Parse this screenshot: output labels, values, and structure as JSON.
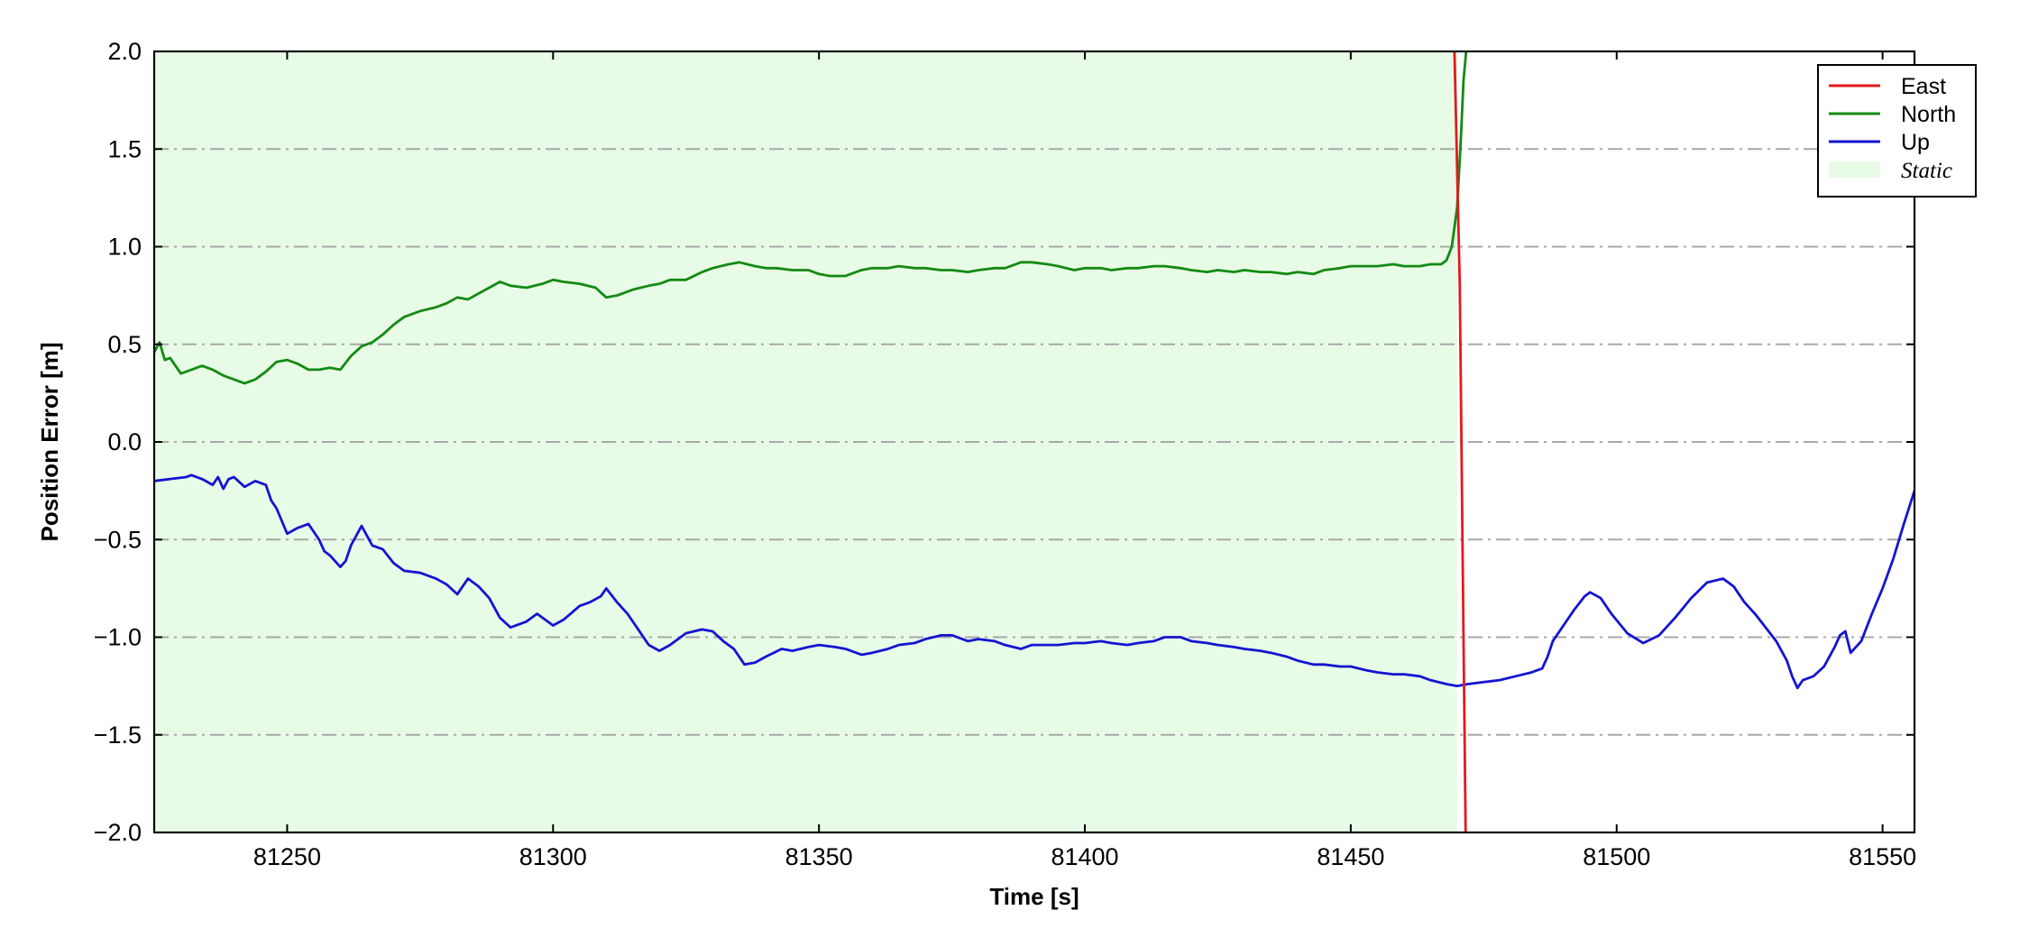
{
  "chart_data": {
    "type": "line",
    "xlabel": "Time [s]",
    "ylabel": "Position Error [m]",
    "xlim": [
      81225,
      81556
    ],
    "ylim": [
      -2.0,
      2.0
    ],
    "x_ticks": [
      81250,
      81300,
      81350,
      81400,
      81450,
      81500,
      81550
    ],
    "x_tick_labels": [
      "81250",
      "81300",
      "81350",
      "81400",
      "81450",
      "81500",
      "81550"
    ],
    "y_ticks": [
      2.0,
      1.5,
      1.0,
      0.5,
      0.0,
      -0.5,
      -1.0,
      -1.5,
      -2.0
    ],
    "y_tick_labels": [
      "2.0",
      "1.5",
      "1.0",
      "0.5",
      "0.0",
      "−0.5",
      "−1.0",
      "−1.5",
      "−2.0"
    ],
    "grid": "horizontal dash-dot",
    "legend_position": "top-right",
    "static_region": {
      "label": "Static",
      "x_start": 81225,
      "x_end": 81470,
      "color": "#e8fbe6"
    },
    "series": [
      {
        "name": "East",
        "color": "#e31a1c",
        "x": [
          81469.5,
          81470.5,
          81471.2,
          81471.6
        ],
        "y": [
          2.0,
          0.8,
          -1.0,
          -2.0
        ]
      },
      {
        "name": "North",
        "color": "#138a13",
        "x": [
          81225,
          81226,
          81227,
          81228,
          81230,
          81232,
          81234,
          81236,
          81238,
          81240,
          81242,
          81244,
          81246,
          81248,
          81250,
          81252,
          81254,
          81256,
          81258,
          81260,
          81262,
          81264,
          81266,
          81268,
          81270,
          81272,
          81275,
          81278,
          81280,
          81282,
          81284,
          81286,
          81288,
          81290,
          81292,
          81295,
          81298,
          81300,
          81302,
          81305,
          81308,
          81310,
          81312,
          81315,
          81318,
          81320,
          81322,
          81325,
          81328,
          81330,
          81333,
          81335,
          81338,
          81340,
          81342,
          81345,
          81348,
          81350,
          81352,
          81355,
          81358,
          81360,
          81363,
          81365,
          81368,
          81370,
          81373,
          81375,
          81378,
          81380,
          81383,
          81385,
          81388,
          81390,
          81393,
          81395,
          81398,
          81400,
          81403,
          81405,
          81408,
          81410,
          81413,
          81415,
          81418,
          81420,
          81423,
          81425,
          81428,
          81430,
          81433,
          81435,
          81438,
          81440,
          81443,
          81445,
          81448,
          81450,
          81453,
          81455,
          81458,
          81460,
          81463,
          81465,
          81467,
          81468,
          81469,
          81470,
          81470.7,
          81471.2,
          81471.7
        ],
        "y": [
          0.46,
          0.51,
          0.42,
          0.43,
          0.35,
          0.37,
          0.39,
          0.37,
          0.34,
          0.32,
          0.3,
          0.32,
          0.36,
          0.41,
          0.42,
          0.4,
          0.37,
          0.37,
          0.38,
          0.37,
          0.44,
          0.49,
          0.51,
          0.55,
          0.6,
          0.64,
          0.67,
          0.69,
          0.71,
          0.74,
          0.73,
          0.76,
          0.79,
          0.82,
          0.8,
          0.79,
          0.81,
          0.83,
          0.82,
          0.81,
          0.79,
          0.74,
          0.75,
          0.78,
          0.8,
          0.81,
          0.83,
          0.83,
          0.87,
          0.89,
          0.91,
          0.92,
          0.9,
          0.89,
          0.89,
          0.88,
          0.88,
          0.86,
          0.85,
          0.85,
          0.88,
          0.89,
          0.89,
          0.9,
          0.89,
          0.89,
          0.88,
          0.88,
          0.87,
          0.88,
          0.89,
          0.89,
          0.92,
          0.92,
          0.91,
          0.9,
          0.88,
          0.89,
          0.89,
          0.88,
          0.89,
          0.89,
          0.9,
          0.9,
          0.89,
          0.88,
          0.87,
          0.88,
          0.87,
          0.88,
          0.87,
          0.87,
          0.86,
          0.87,
          0.86,
          0.88,
          0.89,
          0.9,
          0.9,
          0.9,
          0.91,
          0.9,
          0.9,
          0.91,
          0.91,
          0.93,
          1.0,
          1.2,
          1.55,
          1.85,
          2.0
        ]
      },
      {
        "name": "Up",
        "color": "#1414d2",
        "x": [
          81225,
          81228,
          81231,
          81232,
          81234,
          81236,
          81237,
          81238,
          81239,
          81240,
          81242,
          81244,
          81246,
          81247,
          81248,
          81250,
          81252,
          81254,
          81256,
          81257,
          81258,
          81260,
          81261,
          81262,
          81264,
          81266,
          81268,
          81270,
          81272,
          81275,
          81278,
          81280,
          81282,
          81284,
          81286,
          81288,
          81290,
          81292,
          81295,
          81297,
          81300,
          81302,
          81305,
          81307,
          81309,
          81310,
          81312,
          81314,
          81316,
          81318,
          81320,
          81322,
          81325,
          81328,
          81330,
          81332,
          81334,
          81336,
          81338,
          81340,
          81343,
          81345,
          81348,
          81350,
          81353,
          81355,
          81358,
          81360,
          81363,
          81365,
          81368,
          81370,
          81373,
          81375,
          81378,
          81380,
          81383,
          81385,
          81388,
          81390,
          81393,
          81395,
          81398,
          81400,
          81403,
          81405,
          81408,
          81410,
          81413,
          81415,
          81418,
          81420,
          81423,
          81425,
          81428,
          81430,
          81433,
          81435,
          81438,
          81440,
          81443,
          81445,
          81448,
          81450,
          81453,
          81455,
          81458,
          81460,
          81463,
          81465,
          81468,
          81470,
          81472,
          81475,
          81478,
          81481,
          81484,
          81486,
          81487,
          81488,
          81490,
          81492,
          81494,
          81495,
          81497,
          81499,
          81502,
          81505,
          81508,
          81511,
          81514,
          81517,
          81520,
          81522,
          81524,
          81526,
          81528,
          81530,
          81532,
          81533,
          81534,
          81535,
          81537,
          81539,
          81541,
          81542,
          81543,
          81544,
          81546,
          81548,
          81550,
          81552,
          81554,
          81556
        ],
        "y": [
          -0.2,
          -0.19,
          -0.18,
          -0.17,
          -0.19,
          -0.22,
          -0.18,
          -0.24,
          -0.19,
          -0.18,
          -0.23,
          -0.2,
          -0.22,
          -0.3,
          -0.34,
          -0.47,
          -0.44,
          -0.42,
          -0.5,
          -0.56,
          -0.58,
          -0.64,
          -0.61,
          -0.53,
          -0.43,
          -0.53,
          -0.55,
          -0.62,
          -0.66,
          -0.67,
          -0.7,
          -0.73,
          -0.78,
          -0.7,
          -0.74,
          -0.8,
          -0.9,
          -0.95,
          -0.92,
          -0.88,
          -0.94,
          -0.91,
          -0.84,
          -0.82,
          -0.79,
          -0.75,
          -0.82,
          -0.88,
          -0.96,
          -1.04,
          -1.07,
          -1.04,
          -0.98,
          -0.96,
          -0.97,
          -1.02,
          -1.06,
          -1.14,
          -1.13,
          -1.1,
          -1.06,
          -1.07,
          -1.05,
          -1.04,
          -1.05,
          -1.06,
          -1.09,
          -1.08,
          -1.06,
          -1.04,
          -1.03,
          -1.01,
          -0.99,
          -0.99,
          -1.02,
          -1.01,
          -1.02,
          -1.04,
          -1.06,
          -1.04,
          -1.04,
          -1.04,
          -1.03,
          -1.03,
          -1.02,
          -1.03,
          -1.04,
          -1.03,
          -1.02,
          -1.0,
          -1.0,
          -1.02,
          -1.03,
          -1.04,
          -1.05,
          -1.06,
          -1.07,
          -1.08,
          -1.1,
          -1.12,
          -1.14,
          -1.14,
          -1.15,
          -1.15,
          -1.17,
          -1.18,
          -1.19,
          -1.19,
          -1.2,
          -1.22,
          -1.24,
          -1.25,
          -1.24,
          -1.23,
          -1.22,
          -1.2,
          -1.18,
          -1.16,
          -1.1,
          -1.02,
          -0.94,
          -0.86,
          -0.79,
          -0.77,
          -0.8,
          -0.88,
          -0.98,
          -1.03,
          -0.99,
          -0.9,
          -0.8,
          -0.72,
          -0.7,
          -0.74,
          -0.82,
          -0.88,
          -0.95,
          -1.02,
          -1.12,
          -1.2,
          -1.26,
          -1.22,
          -1.2,
          -1.15,
          -1.05,
          -0.99,
          -0.97,
          -1.08,
          -1.02,
          -0.88,
          -0.75,
          -0.6,
          -0.42,
          -0.25
        ]
      }
    ]
  }
}
